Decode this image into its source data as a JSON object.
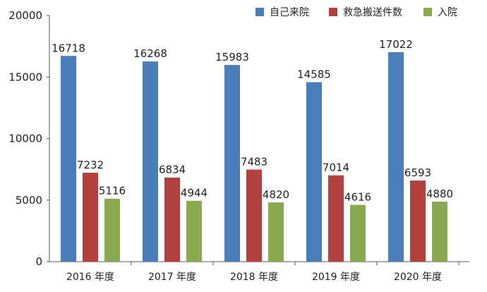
{
  "chart_data": {
    "type": "bar",
    "categories": [
      "2016 年度",
      "2017 年度",
      "2018 年度",
      "2019 年度",
      "2020 年度"
    ],
    "series": [
      {
        "name": "自己来院",
        "color": "#4a7ebb",
        "values": [
          16718,
          16268,
          15983,
          14585,
          17022
        ]
      },
      {
        "name": "救急搬送件数",
        "color": "#b0413e",
        "values": [
          7232,
          6834,
          7483,
          7014,
          6593
        ]
      },
      {
        "name": "入院",
        "color": "#8aaa4f",
        "values": [
          5116,
          4944,
          4820,
          4616,
          4880
        ]
      }
    ],
    "yticks": [
      0,
      5000,
      10000,
      15000,
      20000
    ],
    "ylim": [
      0,
      20000
    ],
    "legend": "top-right",
    "grid": false
  }
}
